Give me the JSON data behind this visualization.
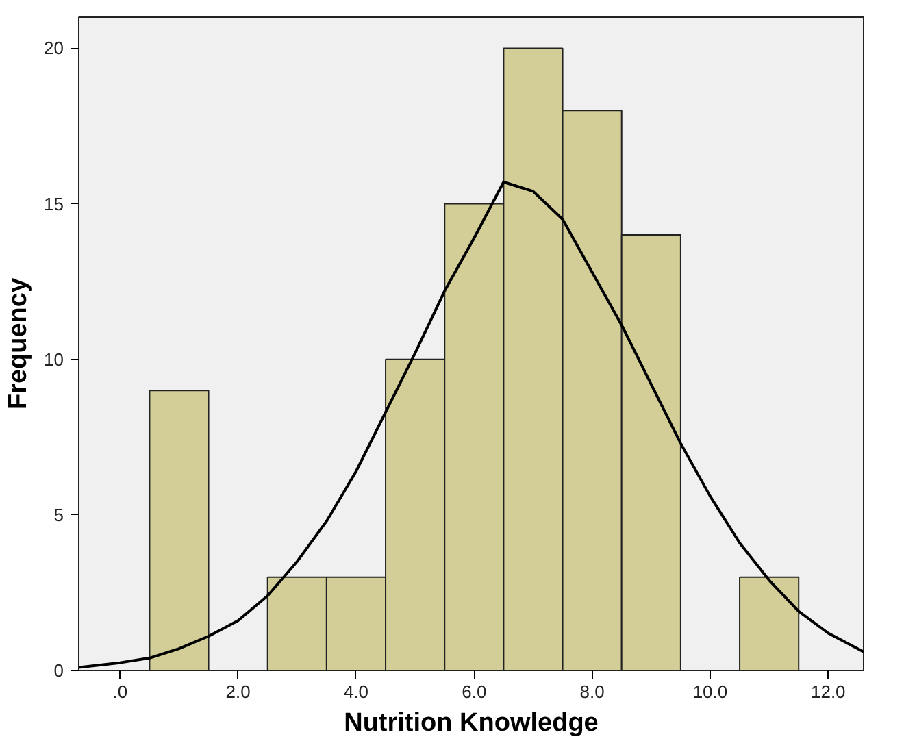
{
  "chart_data": {
    "type": "histogram",
    "xlabel": "Nutrition Knowledge",
    "ylabel": "Frequency",
    "xlim": [
      -0.7,
      12.6
    ],
    "ylim": [
      0,
      21
    ],
    "xticks": [
      {
        "value": 0,
        "label": ".0"
      },
      {
        "value": 2,
        "label": "2.0"
      },
      {
        "value": 4,
        "label": "4.0"
      },
      {
        "value": 6,
        "label": "6.0"
      },
      {
        "value": 8,
        "label": "8.0"
      },
      {
        "value": 10,
        "label": "10.0"
      },
      {
        "value": 12,
        "label": "12.0"
      }
    ],
    "yticks": [
      0,
      5,
      10,
      15,
      20
    ],
    "grid": false,
    "series": [
      {
        "color": "#d3ce97",
        "bins": [
          0.5,
          1.5,
          2.5,
          3.5,
          4.5,
          5.5,
          6.5,
          7.5,
          8.5,
          9.5,
          10.5,
          11.5
        ],
        "values": [
          9,
          0,
          3,
          3,
          10,
          15,
          20,
          18,
          14,
          0,
          3
        ]
      },
      {
        "type": "line",
        "color": "#000000",
        "x": [
          -0.7,
          0,
          0.5,
          1,
          1.5,
          2,
          2.5,
          3,
          3.5,
          4,
          4.5,
          5,
          5.5,
          6,
          6.5,
          7,
          7.5,
          8,
          8.5,
          9,
          9.5,
          10,
          10.5,
          11,
          11.5,
          12,
          12.6
        ],
        "values": [
          0.1,
          0.25,
          0.4,
          0.7,
          1.1,
          1.6,
          2.4,
          3.5,
          4.8,
          6.4,
          8.3,
          10.2,
          12.2,
          13.9,
          15.7,
          15.4,
          14.5,
          12.8,
          11.1,
          9.2,
          7.3,
          5.6,
          4.1,
          2.9,
          1.9,
          1.2,
          0.6
        ]
      }
    ]
  }
}
